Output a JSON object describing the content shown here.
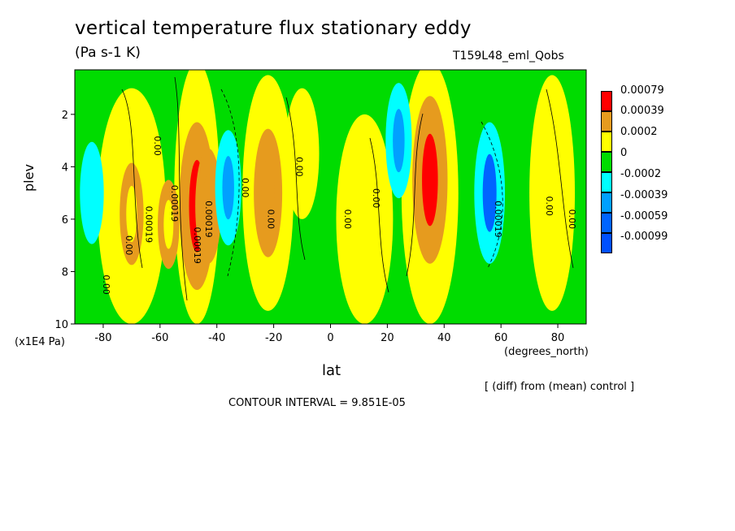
{
  "header": {
    "title": "vertical temperature flux stationary eddy",
    "units": "(Pa s-1 K)",
    "run": "T159L48_eml_Qobs"
  },
  "axes": {
    "ylabel": "plev",
    "yunits": "(x1E4 Pa)",
    "xlabel": "lat",
    "xunits": "(degrees_north)"
  },
  "notes": {
    "diff": "[ (diff) from (mean) control ]",
    "interval": "CONTOUR INTERVAL = 9.851E-05"
  },
  "chart_data": {
    "type": "heatmap",
    "title": "vertical temperature flux stationary eddy",
    "subtitle": "(Pa s-1 K)",
    "xlabel": "lat",
    "ylabel": "plev",
    "xlim": [
      -90,
      90
    ],
    "ylim": [
      10,
      0.3
    ],
    "x_ticks": [
      "-80",
      "-60",
      "-40",
      "-20",
      "0",
      "20",
      "40",
      "60",
      "80"
    ],
    "y_ticks": [
      "2",
      "4",
      "6",
      "8",
      "10"
    ],
    "legend": {
      "levels": [
        "0.00079",
        "0.00039",
        "0.0002",
        "0",
        "-0.0002",
        "-0.00039",
        "-0.00059",
        "-0.00099"
      ],
      "colors": [
        "#ff0000",
        "#e69b1e",
        "#ffff00",
        "#00dc00",
        "#00ffff",
        "#00a0ff",
        "#0064ff",
        "#0050ff"
      ]
    },
    "contour_labels": [
      "0.00",
      "0.00019",
      "0.00019",
      "0.00",
      "0.00",
      "0.00019",
      "0.00019",
      "0.00",
      "0.00",
      "0.00",
      "0.00",
      "0.00",
      "0.00019",
      "0.00",
      "0.00"
    ],
    "features": [
      {
        "lat": -70,
        "plev": 5.8,
        "value": 0.0003
      },
      {
        "lat": -57,
        "plev": 6.2,
        "value": 0.0002
      },
      {
        "lat": -47,
        "plev": 5.5,
        "value": 0.0008
      },
      {
        "lat": -43,
        "plev": 5.5,
        "value": 0.0004
      },
      {
        "lat": -36,
        "plev": 4.8,
        "value": -0.0004
      },
      {
        "lat": -22,
        "plev": 5.0,
        "value": 0.0005
      },
      {
        "lat": 24,
        "plev": 3.0,
        "value": -0.0004
      },
      {
        "lat": 35,
        "plev": 4.5,
        "value": 0.0008
      },
      {
        "lat": 56,
        "plev": 5.0,
        "value": -0.0006
      },
      {
        "lat": -84,
        "plev": 5.0,
        "value": -0.0003
      }
    ]
  }
}
